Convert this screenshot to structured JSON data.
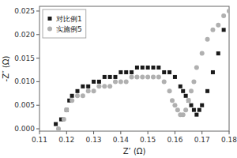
{
  "chart_data": {
    "type": "scatter",
    "xlabel": "Z’ (Ω)",
    "ylabel": "-Z″ (Ω)",
    "xlim": [
      0.11,
      0.18
    ],
    "ylim": [
      -0.0005,
      0.026
    ],
    "xticks": [
      0.11,
      0.12,
      0.13,
      0.14,
      0.15,
      0.16,
      0.17,
      0.18
    ],
    "yticks": [
      {
        "value": 0,
        "label": "0.000"
      },
      0.005,
      {
        "value": 0.01,
        "label": "0.010"
      },
      0.015,
      {
        "value": 0.02,
        "label": "0.020"
      },
      0.025
    ],
    "grid": false,
    "legend": "upper left",
    "series": [
      {
        "name": "对比例1",
        "color": "#1a1a1a",
        "marker": "square",
        "x": [
          0.116,
          0.118,
          0.12,
          0.121,
          0.122,
          0.124,
          0.126,
          0.128,
          0.13,
          0.132,
          0.134,
          0.136,
          0.138,
          0.14,
          0.142,
          0.144,
          0.146,
          0.148,
          0.15,
          0.152,
          0.154,
          0.156,
          0.158,
          0.16,
          0.162,
          0.163,
          0.164,
          0.165,
          0.166,
          0.167,
          0.168,
          0.169,
          0.17,
          0.172,
          0.174,
          0.176,
          0.178
        ],
        "values": [
          0.001,
          0.002,
          0.004,
          0.006,
          0.007,
          0.008,
          0.009,
          0.009,
          0.01,
          0.01,
          0.011,
          0.011,
          0.011,
          0.012,
          0.012,
          0.012,
          0.013,
          0.013,
          0.013,
          0.013,
          0.013,
          0.012,
          0.012,
          0.011,
          0.009,
          0.008,
          0.007,
          0.006,
          0.005,
          0.004,
          0.003,
          0.004,
          0.005,
          0.008,
          0.012,
          0.016,
          0.021
        ]
      },
      {
        "name": "实施例5",
        "color": "#b0b0b0",
        "marker": "circle",
        "x": [
          0.117,
          0.119,
          0.12,
          0.122,
          0.124,
          0.126,
          0.128,
          0.13,
          0.132,
          0.134,
          0.136,
          0.138,
          0.14,
          0.142,
          0.144,
          0.146,
          0.148,
          0.15,
          0.152,
          0.154,
          0.156,
          0.158,
          0.159,
          0.16,
          0.161,
          0.162,
          0.163,
          0.164,
          0.165,
          0.166,
          0.167,
          0.168,
          0.17,
          0.172,
          0.174,
          0.176,
          0.178,
          0.18
        ],
        "values": [
          0.0,
          0.002,
          0.004,
          0.006,
          0.007,
          0.007,
          0.008,
          0.008,
          0.009,
          0.009,
          0.009,
          0.01,
          0.01,
          0.01,
          0.011,
          0.011,
          0.011,
          0.011,
          0.011,
          0.011,
          0.01,
          0.008,
          0.006,
          0.005,
          0.004,
          0.003,
          0.003,
          0.004,
          0.006,
          0.008,
          0.01,
          0.013,
          0.016,
          0.019,
          0.021,
          0.022,
          0.024,
          0.025
        ]
      }
    ]
  }
}
